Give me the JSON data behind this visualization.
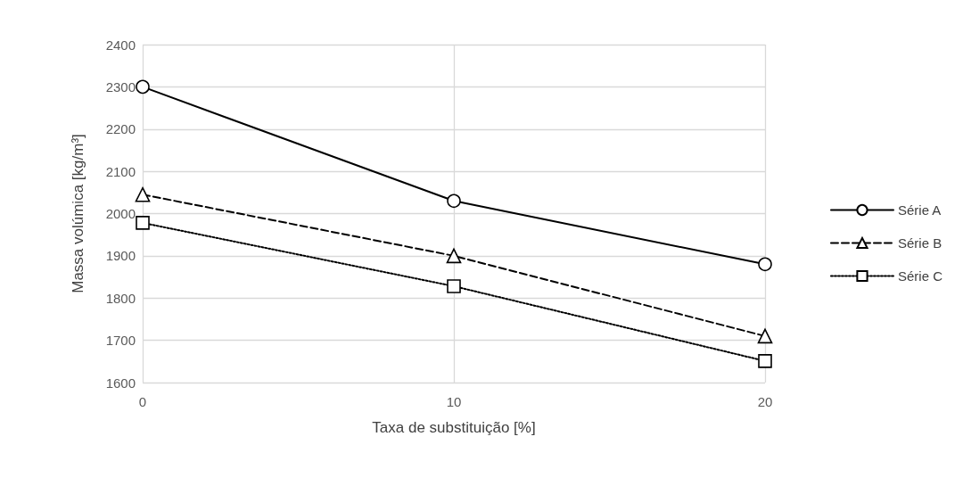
{
  "chart_data": {
    "type": "line",
    "xlabel": "Taxa de substituição [%]",
    "ylabel": "Massa volúmica [kg/m³]",
    "x": [
      0,
      10,
      20
    ],
    "xlim": [
      0,
      20
    ],
    "xticks": [
      0,
      10,
      20
    ],
    "ylim": [
      1600,
      2400
    ],
    "yticks": [
      1600,
      1700,
      1800,
      1900,
      2000,
      2100,
      2200,
      2300,
      2400
    ],
    "grid": true,
    "legend": "right",
    "series": [
      {
        "name": "Série A",
        "color": "#000000",
        "marker": "circle",
        "line_style": "solid",
        "values": [
          2300,
          2030,
          1880
        ]
      },
      {
        "name": "Série B",
        "color": "#000000",
        "marker": "triangle",
        "line_style": "dashed",
        "values": [
          2045,
          1900,
          1710
        ]
      },
      {
        "name": "Série C",
        "color": "#000000",
        "marker": "square",
        "line_style": "dotted",
        "values": [
          1978,
          1828,
          1651
        ]
      }
    ]
  }
}
